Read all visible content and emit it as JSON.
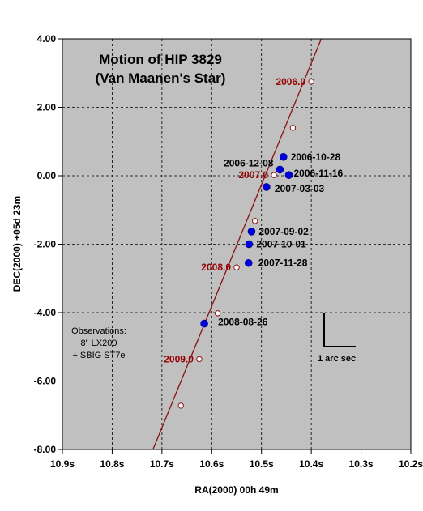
{
  "chart_data": {
    "type": "scatter",
    "title": [
      "Motion of HIP 3829",
      "(Van Maanen's Star)"
    ],
    "xlabel": "RA(2000) 00h 49m",
    "ylabel": "DEC(2000) +05d 23m",
    "xlim": [
      10.9,
      10.2
    ],
    "ylim": [
      -8.0,
      4.0
    ],
    "x_ticks": [
      {
        "value": 10.9,
        "label": "10.9s"
      },
      {
        "value": 10.8,
        "label": "10.8s"
      },
      {
        "value": 10.7,
        "label": "10.7s"
      },
      {
        "value": 10.6,
        "label": "10.6s"
      },
      {
        "value": 10.5,
        "label": "10.5s"
      },
      {
        "value": 10.4,
        "label": "10.4s"
      },
      {
        "value": 10.3,
        "label": "10.3s"
      },
      {
        "value": 10.2,
        "label": "10.2s"
      }
    ],
    "y_ticks": [
      {
        "value": 4.0,
        "label": "4.00"
      },
      {
        "value": 2.0,
        "label": "2.00"
      },
      {
        "value": 0.0,
        "label": "0.00"
      },
      {
        "value": -2.0,
        "label": "-2.00"
      },
      {
        "value": -4.0,
        "label": "-4.00"
      },
      {
        "value": -6.0,
        "label": "-6.00"
      },
      {
        "value": -8.0,
        "label": "-8.00"
      }
    ],
    "grid": true,
    "colors": {
      "plot_bg": "#c0c0c0",
      "line": "#8b1010",
      "observation": "#0000dd",
      "predicted_fill": "#ffffff",
      "epoch_label": "#990000"
    },
    "motion_line": {
      "from": {
        "x": 10.38,
        "y": 4.0
      },
      "to": {
        "x": 10.718,
        "y": -8.0
      }
    },
    "predicted_positions": [
      {
        "x": 10.4,
        "y": 2.75,
        "label": "2006.0"
      },
      {
        "x": 10.437,
        "y": 1.4,
        "label": ""
      },
      {
        "x": 10.475,
        "y": 0.02,
        "label": "2007.0"
      },
      {
        "x": 10.513,
        "y": -1.32,
        "label": ""
      },
      {
        "x": 10.55,
        "y": -2.68,
        "label": "2008.0"
      },
      {
        "x": 10.588,
        "y": -4.02,
        "label": ""
      },
      {
        "x": 10.625,
        "y": -5.36,
        "label": "2009.0"
      },
      {
        "x": 10.662,
        "y": -6.72,
        "label": ""
      }
    ],
    "observations": [
      {
        "x": 10.456,
        "y": 0.55,
        "label": "2006-10-28"
      },
      {
        "x": 10.463,
        "y": 0.18,
        "label": "2006-12-08"
      },
      {
        "x": 10.445,
        "y": 0.02,
        "label": "2006-11-16"
      },
      {
        "x": 10.49,
        "y": -0.33,
        "label": "2007-03-03"
      },
      {
        "x": 10.52,
        "y": -1.63,
        "label": "2007-09-02"
      },
      {
        "x": 10.525,
        "y": -2.0,
        "label": "2007-10-01"
      },
      {
        "x": 10.526,
        "y": -2.55,
        "label": "2007-11-28"
      },
      {
        "x": 10.615,
        "y": -4.32,
        "label": "2008-08-26"
      }
    ],
    "annotations": {
      "observations_note": [
        "Observations:",
        "8\" LX200",
        "+ SBIG ST7e"
      ],
      "scale_bar_label": "1 arc sec"
    }
  }
}
